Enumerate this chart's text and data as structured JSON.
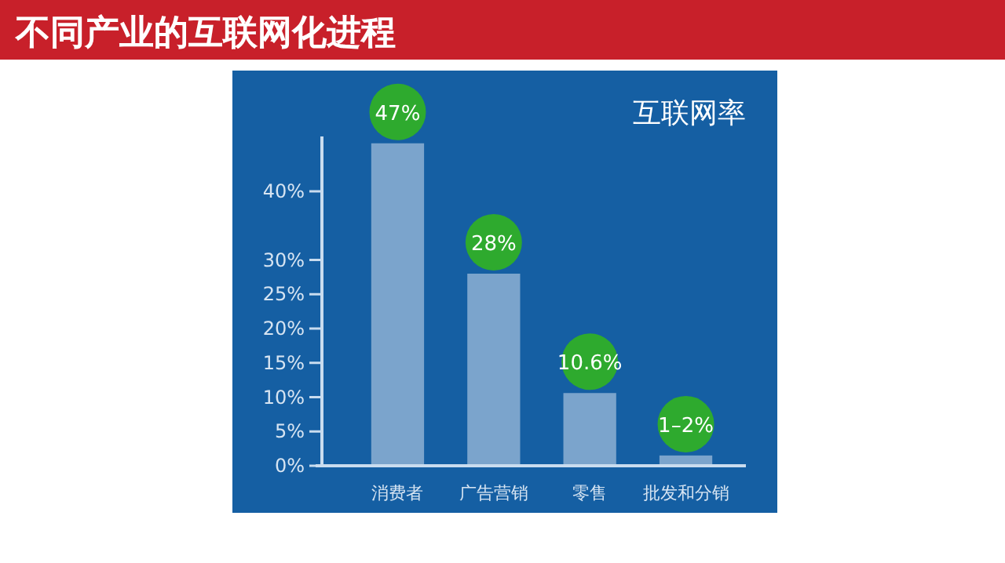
{
  "chart_data": {
    "type": "bar",
    "title": "不同产业的互联网化进程",
    "subtitle": "互联网率",
    "categories": [
      "消费者",
      "广告营销",
      "零售",
      "批发和分销"
    ],
    "values": [
      47,
      28,
      10.6,
      1.5
    ],
    "value_labels": [
      "47%",
      "28%",
      "10.6%",
      "1–2%"
    ],
    "color": "#7ba4cc",
    "ylim": [
      0,
      48
    ],
    "yticks": [
      {
        "value": 0,
        "label": "0%"
      },
      {
        "value": 5,
        "label": "5%"
      },
      {
        "value": 10,
        "label": "10%"
      },
      {
        "value": 15,
        "label": "15%"
      },
      {
        "value": 20,
        "label": "20%"
      },
      {
        "value": 25,
        "label": "25%"
      },
      {
        "value": 30,
        "label": "30%"
      },
      {
        "value": 40,
        "label": "40%"
      }
    ],
    "grid": false
  }
}
